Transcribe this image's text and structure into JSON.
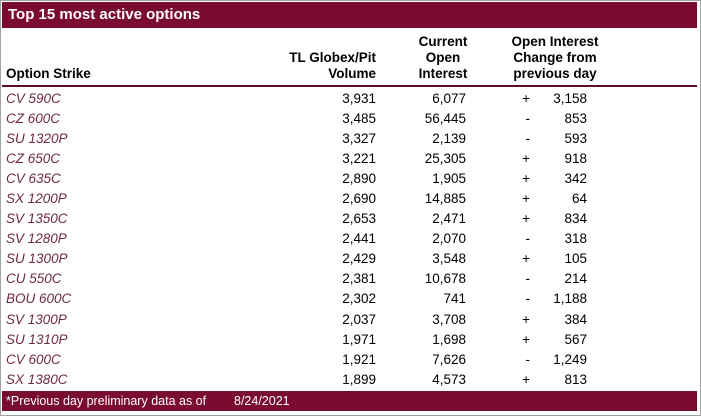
{
  "title": "Top 15 most active options",
  "columns": {
    "strike": "Option Strike",
    "volume": [
      "TL Globex/Pit",
      "Volume"
    ],
    "open_interest": [
      "Current",
      "Open",
      "Interest"
    ],
    "change": [
      "Open Interest",
      "Change from",
      "previous day"
    ]
  },
  "rows": [
    {
      "strike": "CV 590C",
      "volume": "3,931",
      "open_interest": "6,077",
      "change_sign": "+",
      "change_value": "3,158"
    },
    {
      "strike": "CZ 600C",
      "volume": "3,485",
      "open_interest": "56,445",
      "change_sign": "-",
      "change_value": "853"
    },
    {
      "strike": "SU 1320P",
      "volume": "3,327",
      "open_interest": "2,139",
      "change_sign": "-",
      "change_value": "593"
    },
    {
      "strike": "CZ 650C",
      "volume": "3,221",
      "open_interest": "25,305",
      "change_sign": "+",
      "change_value": "918"
    },
    {
      "strike": "CV 635C",
      "volume": "2,890",
      "open_interest": "1,905",
      "change_sign": "+",
      "change_value": "342"
    },
    {
      "strike": "SX 1200P",
      "volume": "2,690",
      "open_interest": "14,885",
      "change_sign": "+",
      "change_value": "64"
    },
    {
      "strike": "SV 1350C",
      "volume": "2,653",
      "open_interest": "2,471",
      "change_sign": "+",
      "change_value": "834"
    },
    {
      "strike": "SV 1280P",
      "volume": "2,441",
      "open_interest": "2,070",
      "change_sign": "-",
      "change_value": "318"
    },
    {
      "strike": "SU 1300P",
      "volume": "2,429",
      "open_interest": "3,548",
      "change_sign": "+",
      "change_value": "105"
    },
    {
      "strike": "CU 550C",
      "volume": "2,381",
      "open_interest": "10,678",
      "change_sign": "-",
      "change_value": "214"
    },
    {
      "strike": "BOU 600C",
      "volume": "2,302",
      "open_interest": "741",
      "change_sign": "-",
      "change_value": "1,188"
    },
    {
      "strike": "SV 1300P",
      "volume": "2,037",
      "open_interest": "3,708",
      "change_sign": "+",
      "change_value": "384"
    },
    {
      "strike": "SU 1310P",
      "volume": "1,971",
      "open_interest": "1,698",
      "change_sign": "+",
      "change_value": "567"
    },
    {
      "strike": "CV 600C",
      "volume": "1,921",
      "open_interest": "7,626",
      "change_sign": "-",
      "change_value": "1,249"
    },
    {
      "strike": "SX 1380C",
      "volume": "1,899",
      "open_interest": "4,573",
      "change_sign": "+",
      "change_value": "813"
    }
  ],
  "footer": {
    "note": "*Previous day preliminary data as of",
    "date": "8/24/2021"
  },
  "colors": {
    "maroon": "#7A0C31",
    "rule": "#5E0A28",
    "strike_text": "#6C2B3B"
  }
}
